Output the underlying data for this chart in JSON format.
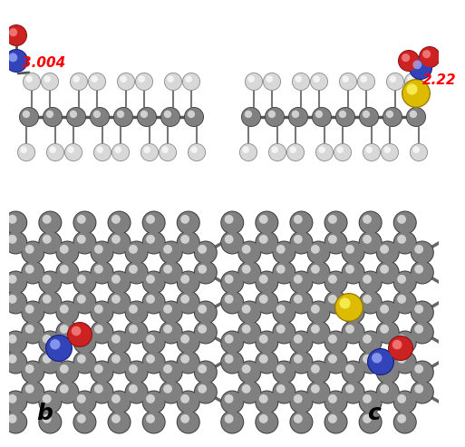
{
  "bg": "#ffffff",
  "C_color": "#808080",
  "C_edge": "#404040",
  "H_color": "#d8d8d8",
  "H_edge": "#888888",
  "O_color": "#cc2222",
  "O_edge": "#881111",
  "N_color": "#3344bb",
  "N_edge": "#112288",
  "S_color": "#ddbb00",
  "S_edge": "#997700",
  "bond_color": "#555555",
  "label_b": "b",
  "label_c": "c",
  "dist_b": "3.004",
  "dist_c": "2.22",
  "dist_color": "#ff0000"
}
